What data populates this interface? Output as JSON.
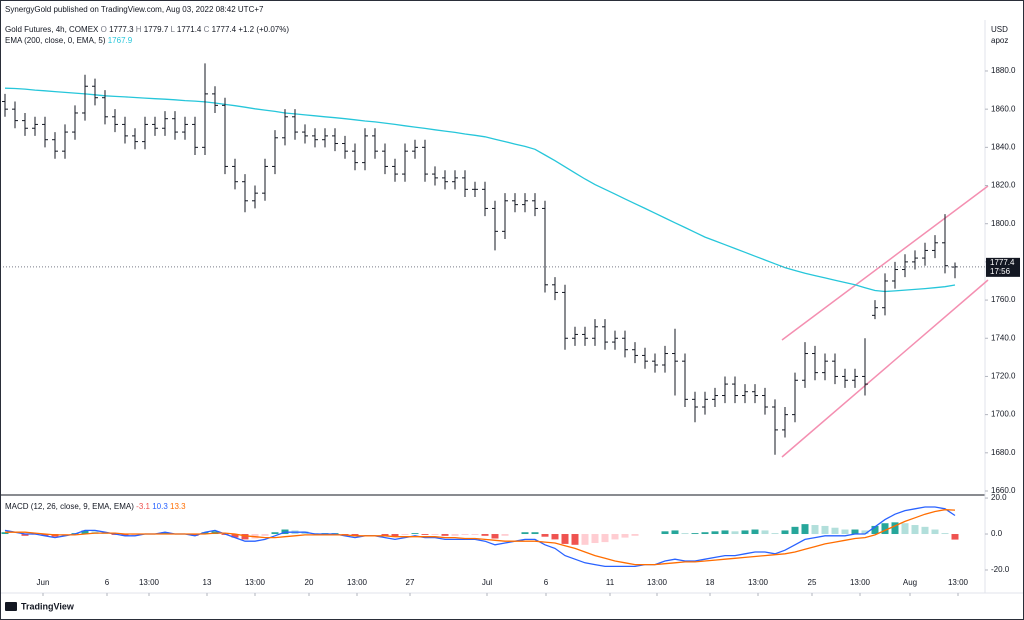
{
  "header": {
    "publisher": "SynergyGold published on TradingView.com, Aug 03, 2022 08:42 UTC+7"
  },
  "footer": {
    "brand": "TradingView"
  },
  "chart_data": [
    {
      "type": "ohlc",
      "name": "Gold Futures, 4h, COMEX",
      "ohlc_prefixes": [
        "O",
        "H",
        "L",
        "C"
      ],
      "change": "+1.2 (+0.07%)",
      "currency": "USD",
      "axis_note": "apoz",
      "countdown": "17:56",
      "color": "#131722",
      "xlim": [
        -0.5,
        98
      ],
      "ylim": [
        1657.9,
        1906.7
      ],
      "yticks": [
        {
          "value": 1660,
          "label": "1660.0"
        },
        {
          "value": 1680,
          "label": "1680.0"
        },
        {
          "value": 1700,
          "label": "1700.0"
        },
        {
          "value": 1720,
          "label": "1720.0"
        },
        {
          "value": 1740,
          "label": "1740.0"
        },
        {
          "value": 1760,
          "label": "1760.0"
        },
        {
          "value": 1780,
          "label": "1780.0"
        },
        {
          "value": 1800,
          "label": "1800.0"
        },
        {
          "value": 1820,
          "label": "1820.0"
        },
        {
          "value": 1840,
          "label": "1840.0"
        },
        {
          "value": 1860,
          "label": "1860.0"
        },
        {
          "value": 1880,
          "label": "1880.0"
        }
      ],
      "open": [
        1864,
        1860,
        1854,
        1850,
        1852,
        1844,
        1838,
        1848,
        1858,
        1872,
        1866,
        1856,
        1852,
        1846,
        1843,
        1852,
        1850,
        1855,
        1848,
        1852,
        1840,
        1868,
        1862,
        1830,
        1822,
        1812,
        1816,
        1830,
        1845,
        1856,
        1848,
        1846,
        1844,
        1846,
        1842,
        1838,
        1832,
        1846,
        1838,
        1830,
        1826,
        1838,
        1840,
        1826,
        1824,
        1822,
        1824,
        1818,
        1818,
        1808,
        1796,
        1812,
        1810,
        1812,
        1808,
        1768,
        1764,
        1740,
        1742,
        1740,
        1746,
        1738,
        1740,
        1734,
        1731,
        1728,
        1726,
        1732,
        1728,
        1708,
        1704,
        1708,
        1710,
        1716,
        1710,
        1712,
        1710,
        1704,
        1692,
        1700,
        1718,
        1732,
        1722,
        1728,
        1720,
        1718,
        1720,
        1752,
        1756,
        1770,
        1776,
        1780,
        1782,
        1786,
        1790,
        1777.3
      ],
      "high": [
        1868,
        1864,
        1858,
        1856,
        1856,
        1848,
        1852,
        1862,
        1878,
        1876,
        1870,
        1860,
        1856,
        1850,
        1856,
        1856,
        1859,
        1859,
        1856,
        1856,
        1884,
        1872,
        1866,
        1834,
        1826,
        1820,
        1834,
        1849,
        1860,
        1860,
        1852,
        1850,
        1850,
        1850,
        1846,
        1842,
        1850,
        1850,
        1842,
        1834,
        1842,
        1844,
        1844,
        1830,
        1828,
        1828,
        1828,
        1822,
        1822,
        1812,
        1816,
        1816,
        1816,
        1816,
        1812,
        1772,
        1768,
        1746,
        1746,
        1750,
        1750,
        1744,
        1744,
        1738,
        1735,
        1732,
        1736,
        1745,
        1732,
        1712,
        1712,
        1714,
        1720,
        1720,
        1716,
        1716,
        1714,
        1708,
        1704,
        1722,
        1738,
        1736,
        1732,
        1732,
        1724,
        1724,
        1740,
        1760,
        1774,
        1780,
        1784,
        1786,
        1790,
        1794,
        1805,
        1779.7
      ],
      "low": [
        1856,
        1850,
        1846,
        1846,
        1840,
        1834,
        1834,
        1844,
        1854,
        1862,
        1852,
        1848,
        1842,
        1839,
        1839,
        1846,
        1846,
        1844,
        1844,
        1836,
        1836,
        1858,
        1826,
        1818,
        1806,
        1808,
        1812,
        1826,
        1841,
        1844,
        1842,
        1840,
        1840,
        1838,
        1834,
        1828,
        1828,
        1834,
        1826,
        1822,
        1822,
        1834,
        1822,
        1820,
        1818,
        1818,
        1814,
        1814,
        1804,
        1786,
        1792,
        1806,
        1806,
        1804,
        1764,
        1760,
        1734,
        1736,
        1736,
        1736,
        1734,
        1734,
        1730,
        1727,
        1724,
        1722,
        1722,
        1710,
        1704,
        1696,
        1700,
        1704,
        1706,
        1706,
        1706,
        1706,
        1700,
        1679,
        1688,
        1696,
        1714,
        1718,
        1718,
        1716,
        1714,
        1714,
        1710,
        1750,
        1752,
        1766,
        1772,
        1776,
        1778,
        1782,
        1774,
        1771.4
      ],
      "close": [
        1860,
        1854,
        1850,
        1852,
        1844,
        1838,
        1848,
        1858,
        1872,
        1866,
        1856,
        1852,
        1846,
        1843,
        1852,
        1850,
        1855,
        1848,
        1852,
        1840,
        1868,
        1862,
        1830,
        1822,
        1812,
        1816,
        1830,
        1845,
        1856,
        1848,
        1846,
        1844,
        1846,
        1842,
        1838,
        1832,
        1846,
        1838,
        1830,
        1826,
        1838,
        1840,
        1826,
        1824,
        1822,
        1824,
        1818,
        1818,
        1808,
        1796,
        1812,
        1810,
        1812,
        1808,
        1768,
        1764,
        1740,
        1742,
        1740,
        1746,
        1738,
        1740,
        1734,
        1731,
        1728,
        1726,
        1732,
        1728,
        1708,
        1704,
        1708,
        1710,
        1716,
        1710,
        1712,
        1710,
        1704,
        1692,
        1700,
        1718,
        1732,
        1722,
        1728,
        1720,
        1718,
        1720,
        1716,
        1756,
        1770,
        1776,
        1780,
        1782,
        1786,
        1790,
        1778,
        1777.4
      ],
      "series": [
        {
          "name": "EMA (200, close, 0, EMA, 5)",
          "color": "#26c6da",
          "values": [
            1871,
            1870.8,
            1870.5,
            1870,
            1869.6,
            1869.2,
            1868.8,
            1868.4,
            1868,
            1867.5,
            1867,
            1866.7,
            1866.4,
            1866.1,
            1865.8,
            1865.5,
            1865.2,
            1864.9,
            1864.5,
            1864.2,
            1863.8,
            1863.2,
            1862.5,
            1861.8,
            1861,
            1860.2,
            1859.5,
            1858.8,
            1858,
            1857.5,
            1857,
            1856.5,
            1856,
            1855.5,
            1855,
            1854.4,
            1853.8,
            1853.3,
            1852.7,
            1852,
            1851.3,
            1850.6,
            1849.9,
            1849.2,
            1848.5,
            1847.8,
            1847,
            1846.3,
            1845.5,
            1844.2,
            1843,
            1841.7,
            1840.5,
            1839,
            1836,
            1833,
            1829.8,
            1826.6,
            1823.4,
            1820.5,
            1818,
            1815.5,
            1813,
            1810.5,
            1808,
            1805.5,
            1803,
            1800.5,
            1798,
            1795.5,
            1793,
            1791,
            1789,
            1787,
            1785,
            1783,
            1781,
            1779,
            1777,
            1775.5,
            1774,
            1772.8,
            1771.6,
            1770.4,
            1769.2,
            1768,
            1766.5,
            1765,
            1764.5,
            1764.8,
            1765.2,
            1765.6,
            1766,
            1766.5,
            1767,
            1767.9
          ]
        }
      ]
    },
    {
      "type": "macd",
      "name": "MACD (12, 26, close, 9, EMA, EMA)",
      "ylim": [
        -32.8,
        21.7
      ],
      "yticks": [
        {
          "value": -20,
          "label": "-20.0"
        },
        {
          "value": 0,
          "label": "0.0"
        },
        {
          "value": 20,
          "label": "20.0"
        }
      ],
      "xticks": [
        {
          "value": 3.8,
          "label": "Jun"
        },
        {
          "value": 10.2,
          "label": "6"
        },
        {
          "value": 14.4,
          "label": "13:00"
        },
        {
          "value": 20.2,
          "label": "13"
        },
        {
          "value": 25,
          "label": "13:00"
        },
        {
          "value": 30.4,
          "label": "20"
        },
        {
          "value": 35.2,
          "label": "13:00"
        },
        {
          "value": 40.5,
          "label": "27"
        },
        {
          "value": 48.2,
          "label": "Jul"
        },
        {
          "value": 54.1,
          "label": "6"
        },
        {
          "value": 60.5,
          "label": "11"
        },
        {
          "value": 65.2,
          "label": "13:00"
        },
        {
          "value": 70.5,
          "label": "18"
        },
        {
          "value": 75.3,
          "label": "13:00"
        },
        {
          "value": 80.7,
          "label": "25"
        },
        {
          "value": 85.5,
          "label": "13:00"
        },
        {
          "value": 90.5,
          "label": "Aug"
        },
        {
          "value": 95.3,
          "label": "13:00"
        }
      ],
      "histogram": {
        "colors": {
          "up_rising": "#26a69a",
          "up_falling": "#b2dfdb",
          "down_falling": "#ef5350",
          "down_rising": "#ffcdd2"
        },
        "values": [
          1,
          0,
          -1,
          -0.5,
          -1,
          -1.5,
          -0.5,
          0.5,
          2,
          1.5,
          0.5,
          -0.5,
          -1,
          -1,
          0,
          0,
          1,
          0,
          0,
          -1,
          1,
          1.5,
          -0.5,
          -2,
          -3,
          -2.5,
          -1,
          1,
          2.5,
          2,
          1.5,
          0.5,
          0.5,
          0.5,
          -0.5,
          -1,
          0,
          0,
          -1,
          -1.5,
          -0.5,
          0.5,
          -0.5,
          -0.5,
          -1,
          -1,
          -0.5,
          -0.5,
          -1,
          -2.5,
          -1,
          0,
          1,
          1,
          -1.5,
          -3,
          -5.5,
          -6,
          -6,
          -5,
          -4.5,
          -3,
          -2,
          -1,
          0,
          0,
          1.5,
          2,
          0.5,
          0.5,
          1,
          1.5,
          2,
          1.5,
          2,
          2.5,
          2,
          0.5,
          2,
          4,
          5.5,
          5,
          4.5,
          3.5,
          2.5,
          2.5,
          2,
          4.5,
          6,
          6.5,
          6,
          5,
          4,
          2.5,
          0.5,
          -3.1
        ]
      },
      "macd": {
        "color": "#2962ff",
        "values": [
          2,
          1,
          0,
          0,
          -1,
          -2,
          -1,
          0,
          2,
          2,
          1,
          0,
          -1,
          -1,
          0,
          0,
          1,
          0,
          0,
          -1,
          1,
          2,
          0,
          -2,
          -4,
          -4,
          -3,
          -1,
          1,
          1,
          1,
          0,
          0,
          0,
          -1,
          -2,
          -1,
          -1,
          -2,
          -3,
          -2,
          -1,
          -2,
          -2,
          -3,
          -3,
          -3,
          -3,
          -4,
          -6,
          -5,
          -4,
          -3,
          -3,
          -6,
          -8,
          -12,
          -14,
          -16,
          -17,
          -18,
          -18,
          -18,
          -18,
          -17,
          -17,
          -15,
          -14,
          -15,
          -15,
          -14,
          -13,
          -12,
          -12,
          -11,
          -10,
          -10,
          -11,
          -9,
          -6,
          -3,
          -2,
          -1,
          -1,
          -1,
          0,
          0,
          4,
          8,
          11,
          13,
          14,
          15,
          15,
          14,
          10.3
        ]
      },
      "signal": {
        "color": "#ff6d00",
        "values": [
          1,
          1,
          1,
          0.5,
          0,
          -0.5,
          -0.5,
          -0.5,
          0,
          0.5,
          0.5,
          0.5,
          0,
          0,
          0,
          0,
          0,
          0,
          0,
          0,
          0,
          0.5,
          0.5,
          0,
          -1,
          -1.5,
          -2,
          -2,
          -1.5,
          -1,
          -0.5,
          -0.5,
          -0.5,
          -0.5,
          -0.5,
          -1,
          -1,
          -1,
          -1,
          -1.5,
          -1.5,
          -1.5,
          -1.5,
          -1.5,
          -2,
          -2,
          -2.5,
          -2.5,
          -3,
          -3.5,
          -4,
          -4,
          -4,
          -4,
          -4.5,
          -5,
          -6.5,
          -8,
          -10,
          -12,
          -13.5,
          -15,
          -16,
          -17,
          -17,
          -17,
          -16.5,
          -16,
          -15.5,
          -15.5,
          -15,
          -14.5,
          -14,
          -13.5,
          -13,
          -12.5,
          -12,
          -11.5,
          -11,
          -10,
          -8.5,
          -7,
          -5.5,
          -4.5,
          -3.5,
          -2.5,
          -2,
          -0.5,
          2,
          4.5,
          7,
          9,
          11,
          12.5,
          13.5,
          13.3
        ]
      }
    }
  ]
}
